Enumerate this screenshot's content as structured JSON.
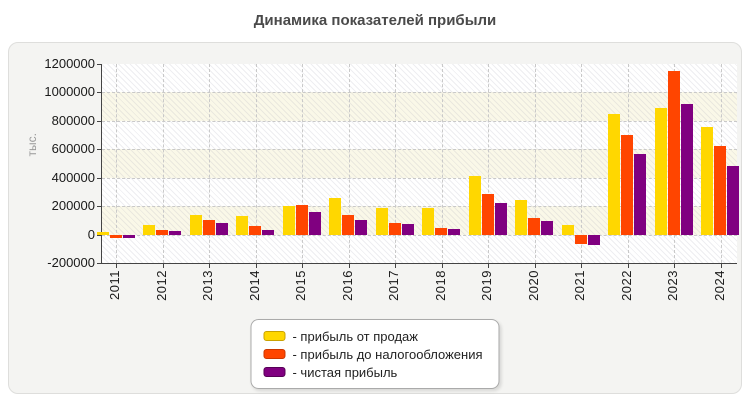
{
  "page": {
    "title": "Динамика показателей прибыли"
  },
  "chart_data": {
    "type": "bar",
    "title": "Динамика показателей прибыли",
    "xlabel": "",
    "ylabel": "тыс.",
    "ylim": [
      -200000,
      1200000
    ],
    "ytick_step": 200000,
    "yticks": [
      "1200000",
      "1000000",
      "800000",
      "600000",
      "400000",
      "200000",
      "0",
      "-200000"
    ],
    "categories": [
      "2011",
      "2012",
      "2013",
      "2014",
      "2015",
      "2016",
      "2017",
      "2018",
      "2019",
      "2020",
      "2021",
      "2022",
      "2023",
      "2024"
    ],
    "series": [
      {
        "name": "прибыль от продаж",
        "legend_label": "- прибыль от продаж",
        "color": "#FFD700",
        "border_color": "#C9A200",
        "values": [
          15000,
          70000,
          140000,
          130000,
          200000,
          260000,
          185000,
          185000,
          415000,
          240000,
          70000,
          850000,
          890000,
          760000
        ]
      },
      {
        "name": "прибыль до налогообложения",
        "legend_label": "- прибыль до налогообложения",
        "color": "#FF4500",
        "border_color": "#CC3700",
        "values": [
          -25000,
          30000,
          100000,
          60000,
          210000,
          135000,
          80000,
          45000,
          285000,
          120000,
          -65000,
          700000,
          1150000,
          620000
        ]
      },
      {
        "name": "чистая прибыль",
        "legend_label": "- чистая прибыль",
        "color": "#800080",
        "border_color": "#560056",
        "values": [
          -25000,
          25000,
          80000,
          30000,
          160000,
          105000,
          75000,
          40000,
          225000,
          95000,
          -75000,
          570000,
          920000,
          485000
        ]
      }
    ],
    "grid": "dashed",
    "legend_position": "bottom-center",
    "plot_band_colors": [
      "#ffffff",
      "#faf8e8"
    ]
  }
}
